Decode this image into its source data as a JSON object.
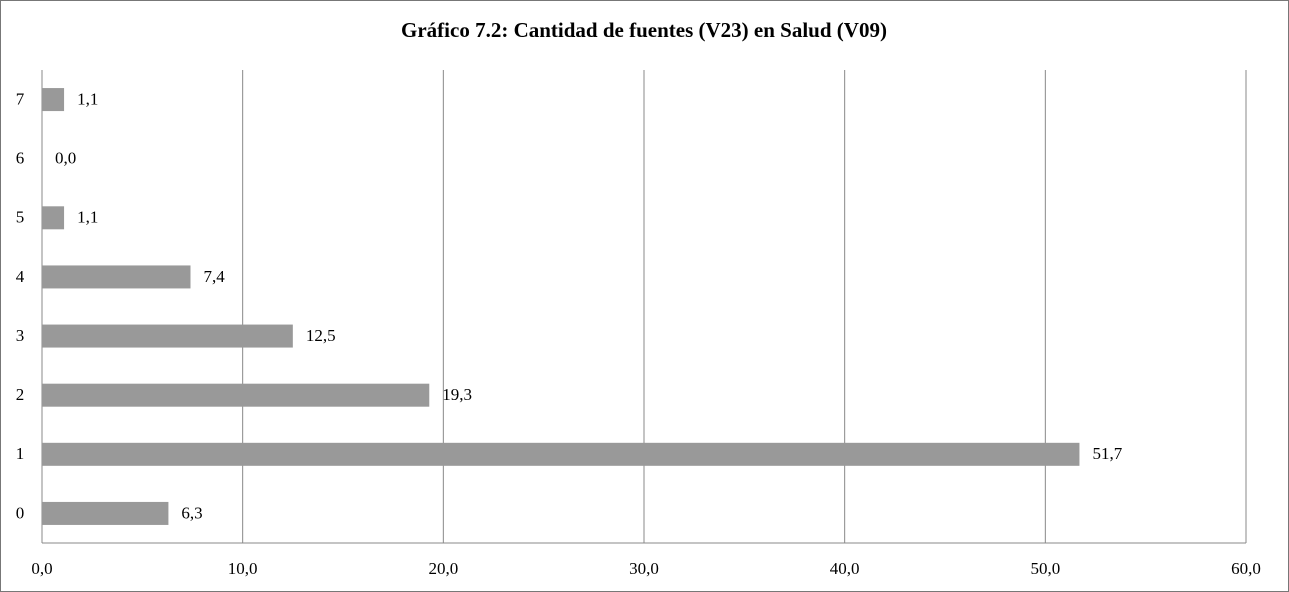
{
  "chart_data": {
    "type": "bar",
    "orientation": "horizontal",
    "title": "Gráfico 7.2: Cantidad de fuentes (V23) en Salud (V09)",
    "categories": [
      "0",
      "1",
      "2",
      "3",
      "4",
      "5",
      "6",
      "7"
    ],
    "values": [
      6.3,
      51.7,
      19.3,
      12.5,
      7.4,
      1.1,
      0.0,
      1.1
    ],
    "value_labels": [
      "6,3",
      "51,7",
      "19,3",
      "12,5",
      "7,4",
      "1,1",
      "0,0",
      "1,1"
    ],
    "color": "#999999",
    "xlim": [
      0,
      60
    ],
    "xticks": [
      {
        "value": 0,
        "label": "0,0"
      },
      {
        "value": 10,
        "label": "10,0"
      },
      {
        "value": 20,
        "label": "20,0"
      },
      {
        "value": 30,
        "label": "30,0"
      },
      {
        "value": 40,
        "label": "40,0"
      },
      {
        "value": 50,
        "label": "50,0"
      },
      {
        "value": 60,
        "label": "60,0"
      }
    ],
    "grid": true
  }
}
